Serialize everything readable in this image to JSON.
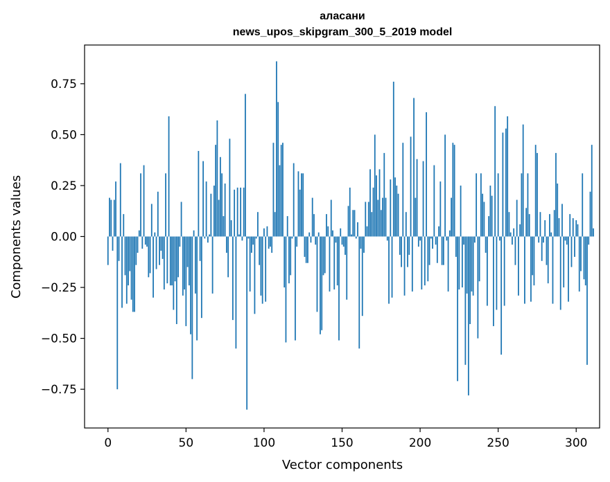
{
  "chart_data": {
    "type": "bar",
    "title_line1": "аласани",
    "title_line2": "news_upos_skipgram_300_5_2019 model",
    "xlabel": "Vector components",
    "ylabel": "Components values",
    "xlim": [
      -15,
      315
    ],
    "ylim": [
      -0.94,
      0.94
    ],
    "x_ticks": [
      0,
      50,
      100,
      150,
      200,
      250,
      300
    ],
    "x_tick_labels": [
      "0",
      "50",
      "100",
      "150",
      "200",
      "250",
      "300"
    ],
    "y_ticks": [
      0.75,
      0.5,
      0.25,
      0.0,
      -0.25,
      -0.5,
      -0.75
    ],
    "y_tick_labels": [
      "0.75",
      "0.50",
      "0.25",
      "0.00",
      "−0.25",
      "−0.50",
      "−0.75"
    ],
    "bar_color": "#1f77b4",
    "values": [
      -0.14,
      0.19,
      0.18,
      -0.07,
      0.18,
      0.27,
      -0.75,
      -0.12,
      0.36,
      -0.35,
      0.11,
      -0.19,
      -0.33,
      -0.24,
      -0.17,
      -0.31,
      -0.37,
      -0.37,
      -0.14,
      -0.08,
      0.03,
      0.31,
      -0.06,
      0.35,
      -0.04,
      -0.05,
      -0.2,
      -0.18,
      0.16,
      -0.3,
      0.02,
      -0.16,
      0.22,
      -0.14,
      -0.07,
      -0.11,
      -0.26,
      0.31,
      -0.23,
      0.59,
      -0.24,
      -0.24,
      -0.36,
      -0.22,
      -0.43,
      -0.2,
      -0.05,
      0.17,
      -0.29,
      -0.26,
      -0.44,
      -0.15,
      -0.24,
      -0.48,
      -0.7,
      0.03,
      -0.28,
      -0.51,
      0.42,
      -0.12,
      -0.4,
      0.37,
      -0.01,
      0.27,
      -0.03,
      0.01,
      0.21,
      -0.28,
      0.25,
      0.45,
      0.57,
      0.18,
      0.39,
      0.31,
      0.1,
      0.26,
      -0.08,
      -0.2,
      0.48,
      0.08,
      -0.41,
      0.23,
      -0.55,
      0.24,
      0.01,
      0.24,
      -0.02,
      0.24,
      0.7,
      -0.85,
      -0.01,
      -0.27,
      -0.08,
      -0.04,
      -0.38,
      -0.01,
      0.12,
      -0.14,
      -0.29,
      -0.33,
      0.04,
      -0.32,
      0.05,
      -0.06,
      -0.05,
      -0.08,
      0.46,
      0.12,
      0.86,
      0.66,
      0.35,
      0.45,
      0.46,
      -0.25,
      -0.52,
      0.1,
      -0.23,
      -0.19,
      -0.01,
      0.36,
      -0.51,
      -0.05,
      0.32,
      0.23,
      0.31,
      0.31,
      -0.1,
      -0.13,
      -0.13,
      0.02,
      -0.03,
      0.19,
      0.11,
      -0.04,
      -0.37,
      0.02,
      -0.48,
      -0.46,
      -0.19,
      -0.18,
      0.11,
      0.05,
      -0.27,
      0.18,
      0.03,
      -0.26,
      -0.03,
      -0.24,
      -0.51,
      0.04,
      -0.04,
      -0.05,
      -0.09,
      -0.31,
      0.15,
      0.24,
      0.01,
      0.13,
      0.13,
      -0.01,
      0.07,
      -0.55,
      -0.06,
      -0.39,
      -0.08,
      0.17,
      0.05,
      0.17,
      0.33,
      0.12,
      0.24,
      0.5,
      0.3,
      0.18,
      0.33,
      0.13,
      0.19,
      0.41,
      0.19,
      -0.02,
      -0.33,
      0.28,
      -0.3,
      0.76,
      0.29,
      0.25,
      0.21,
      -0.09,
      -0.15,
      0.46,
      -0.29,
      0.12,
      -0.15,
      -0.09,
      0.49,
      -0.27,
      0.68,
      0.19,
      0.38,
      -0.05,
      -0.02,
      -0.26,
      0.37,
      -0.24,
      0.61,
      -0.22,
      -0.14,
      -0.01,
      -0.06,
      0.35,
      -0.04,
      -0.13,
      0.05,
      0.27,
      -0.14,
      -0.14,
      0.5,
      -0.02,
      -0.27,
      0.03,
      0.19,
      0.46,
      0.45,
      -0.1,
      -0.71,
      -0.26,
      0.25,
      -0.25,
      -0.04,
      -0.63,
      -0.28,
      -0.78,
      -0.43,
      -0.27,
      -0.29,
      -0.03,
      0.31,
      -0.5,
      -0.22,
      0.31,
      0.21,
      0.17,
      -0.08,
      -0.34,
      0.1,
      0.25,
      0.2,
      -0.44,
      0.64,
      -0.36,
      0.31,
      -0.02,
      -0.58,
      0.51,
      -0.34,
      0.53,
      0.59,
      0.12,
      0.02,
      -0.04,
      0.04,
      -0.14,
      0.18,
      -0.29,
      0.06,
      0.31,
      0.55,
      -0.33,
      0.14,
      0.31,
      0.11,
      -0.32,
      -0.19,
      -0.24,
      0.45,
      0.41,
      -0.03,
      0.12,
      -0.12,
      -0.03,
      0.08,
      -0.14,
      -0.23,
      0.11,
      0.02,
      -0.33,
      0.13,
      0.41,
      0.26,
      0.09,
      -0.36,
      0.16,
      -0.25,
      -0.02,
      -0.04,
      -0.32,
      0.11,
      -0.15,
      0.09,
      -0.1,
      0.08,
      0.06,
      -0.27,
      -0.17,
      0.31,
      -0.21,
      -0.24,
      -0.63,
      -0.04,
      0.22,
      0.45,
      0.04
    ]
  }
}
